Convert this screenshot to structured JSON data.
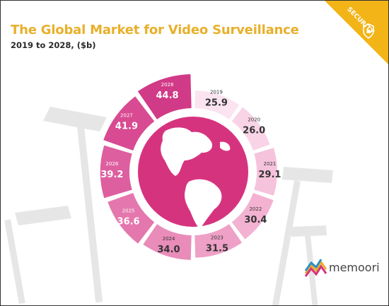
{
  "title": "The Global Market for Video Surveillance",
  "subtitle": "2019 to 2028, ($b)",
  "badge": "SECURITY",
  "logo_text": "memoori",
  "colors": {
    "title": "#e8b02a",
    "ramp": [
      "#fbe3ef",
      "#f9d4e6",
      "#f6c3dc",
      "#f3b2d2",
      "#eea0c6",
      "#e98cba",
      "#e477ad",
      "#de5f9f",
      "#d84a92",
      "#d13a86"
    ],
    "globe": "#d6337f"
  },
  "chart_data": {
    "type": "pie",
    "categories": [
      "2019",
      "2020",
      "2021",
      "2022",
      "2023",
      "2024",
      "2025",
      "2026",
      "2027",
      "2028"
    ],
    "values": [
      25.9,
      26.0,
      29.1,
      30.4,
      31.5,
      34.0,
      36.6,
      39.2,
      41.9,
      44.8
    ],
    "value_labels": [
      "25.9",
      "26.0",
      "29.1",
      "30.4",
      "31.5",
      "34.0",
      "36.6",
      "39.2",
      "41.9",
      "44.8"
    ],
    "title": "The Global Market for Video Surveillance",
    "subtitle": "2019 to 2028, ($b)"
  }
}
